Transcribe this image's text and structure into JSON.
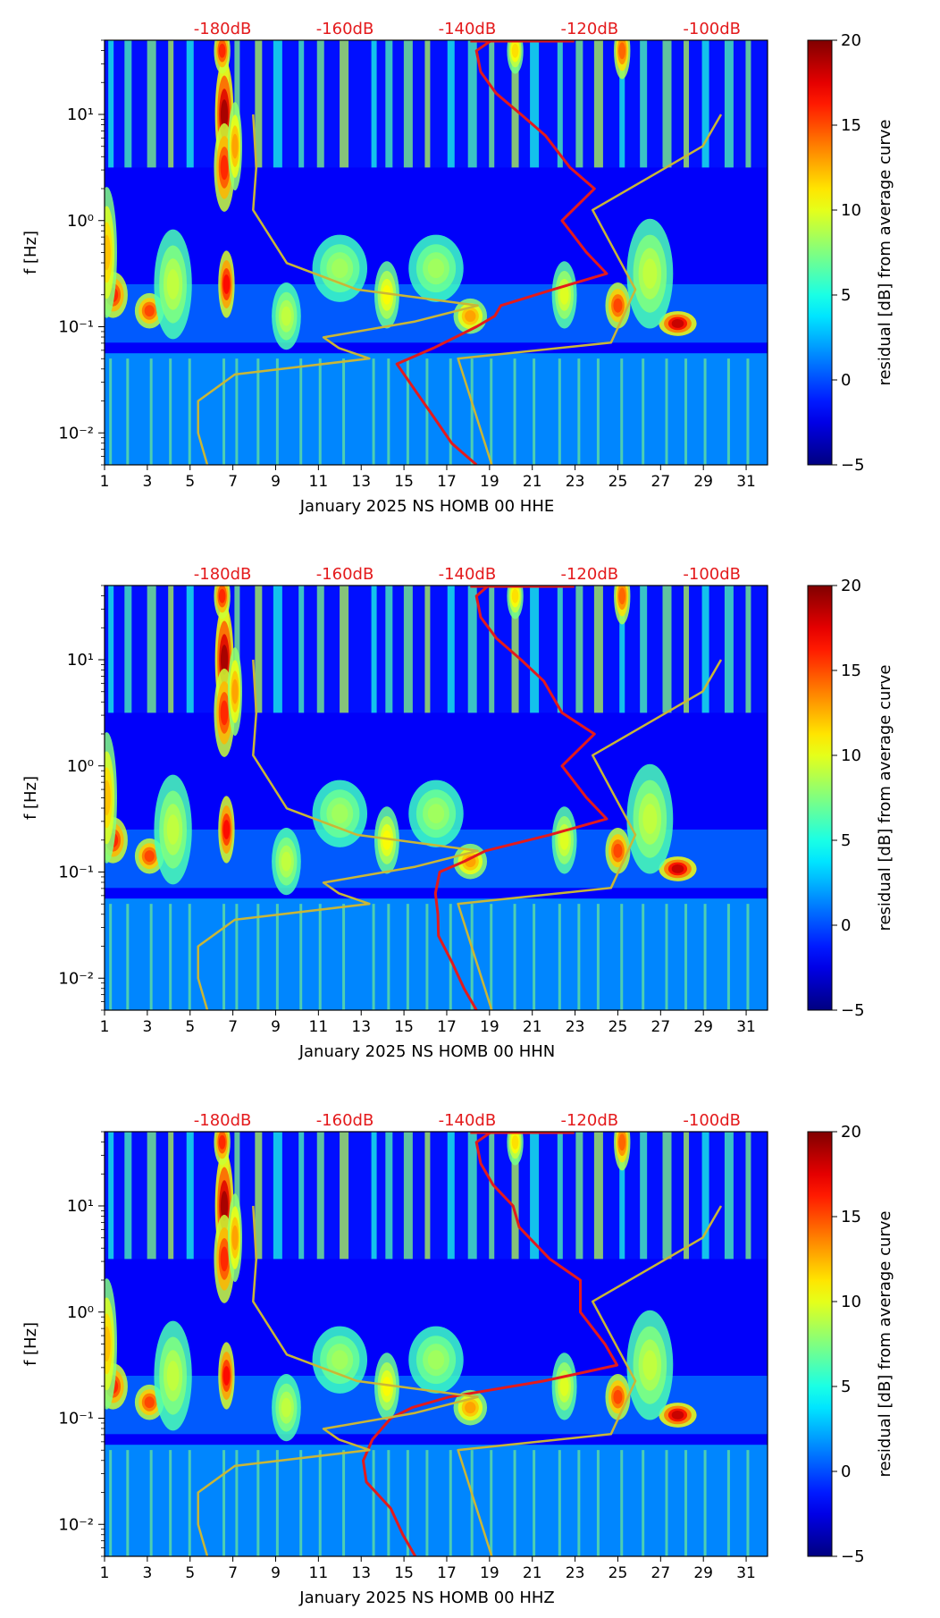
{
  "chart_data": [
    {
      "type": "heatmap",
      "xlabel": "January 2025 NS HOMB 00 HHE",
      "ylabel": "f [Hz]",
      "x_ticks": [
        "1",
        "3",
        "5",
        "7",
        "9",
        "11",
        "13",
        "15",
        "17",
        "19",
        "21",
        "23",
        "25",
        "27",
        "29",
        "31"
      ],
      "x_range": [
        1,
        32
      ],
      "y_ticks": [
        "10⁻²",
        "10⁻¹",
        "10⁰",
        "10¹"
      ],
      "y_range_hz": [
        0.005,
        50
      ],
      "y_scale": "log",
      "top_axis_ticks": [
        "-180dB",
        "-160dB",
        "-140dB",
        "-120dB",
        "-100dB"
      ],
      "colorbar": {
        "label": "residual [dB] from average curve",
        "ticks": [
          "20",
          "15",
          "10",
          "5",
          "0",
          "−5"
        ],
        "range": [
          -5,
          20
        ],
        "colormap": "jet"
      },
      "curves": [
        {
          "name": "average PSD",
          "color": "#e31a1c",
          "log_f_db": [
            [
              1.7,
              -136
            ],
            [
              1.6,
              -138.5
            ],
            [
              1.4,
              -137.8
            ],
            [
              1.2,
              -135.3
            ],
            [
              1.0,
              -131.2
            ],
            [
              0.8,
              -127.2
            ],
            [
              0.5,
              -123.2
            ],
            [
              0.3,
              -119.2
            ],
            [
              0.0,
              -124.5
            ],
            [
              -0.3,
              -120.5
            ],
            [
              -0.5,
              -117.2
            ],
            [
              -0.65,
              -126
            ],
            [
              -0.8,
              -134.5
            ],
            [
              -0.9,
              -135.5
            ],
            [
              -1.0,
              -138.5
            ],
            [
              -1.2,
              -145.5
            ],
            [
              -1.35,
              -151.5
            ],
            [
              -1.6,
              -148.5
            ],
            [
              -1.85,
              -145.5
            ],
            [
              -2.1,
              -142.5
            ],
            [
              -2.3,
              -138.5
            ]
          ]
        },
        {
          "name": "NLNM",
          "color": "#c9b637",
          "log_f_db": [
            [
              -2.3,
              -182.5
            ],
            [
              -2.0,
              -184
            ],
            [
              -1.7,
              -184
            ],
            [
              -1.45,
              -178
            ],
            [
              -1.3,
              -156
            ],
            [
              -1.2,
              -161
            ],
            [
              -1.1,
              -163.5
            ],
            [
              -0.95,
              -148.5
            ],
            [
              -0.8,
              -138.3
            ],
            [
              -0.65,
              -158
            ],
            [
              -0.4,
              -169.5
            ],
            [
              0.1,
              -175
            ],
            [
              0.5,
              -174.5
            ],
            [
              1.0,
              -175
            ]
          ]
        },
        {
          "name": "NHNM",
          "color": "#c9b637",
          "log_f_db": [
            [
              -2.3,
              -136
            ],
            [
              -1.3,
              -141.5
            ],
            [
              -1.15,
              -116.5
            ],
            [
              -0.65,
              -112.5
            ],
            [
              0.1,
              -119.5
            ],
            [
              0.5,
              -107.5
            ],
            [
              0.7,
              -101.5
            ],
            [
              1.0,
              -98.5
            ]
          ]
        }
      ]
    },
    {
      "type": "heatmap",
      "xlabel": "January 2025 NS HOMB 00 HHN",
      "ylabel": "f [Hz]",
      "x_ticks": [
        "1",
        "3",
        "5",
        "7",
        "9",
        "11",
        "13",
        "15",
        "17",
        "19",
        "21",
        "23",
        "25",
        "27",
        "29",
        "31"
      ],
      "x_range": [
        1,
        32
      ],
      "y_ticks": [
        "10⁻²",
        "10⁻¹",
        "10⁰",
        "10¹"
      ],
      "y_range_hz": [
        0.005,
        50
      ],
      "y_scale": "log",
      "top_axis_ticks": [
        "-180dB",
        "-160dB",
        "-140dB",
        "-120dB",
        "-100dB"
      ],
      "colorbar": {
        "label": "residual [dB] from average curve",
        "ticks": [
          "20",
          "15",
          "10",
          "5",
          "0",
          "−5"
        ],
        "range": [
          -5,
          20
        ],
        "colormap": "jet"
      },
      "curves": [
        {
          "name": "average PSD",
          "color": "#e31a1c",
          "log_f_db": [
            [
              1.7,
              -136.5
            ],
            [
              1.6,
              -138.5
            ],
            [
              1.4,
              -137.8
            ],
            [
              1.2,
              -135.2
            ],
            [
              1.0,
              -131.2
            ],
            [
              0.8,
              -127.5
            ],
            [
              0.5,
              -124.5
            ],
            [
              0.3,
              -119.2
            ],
            [
              0.0,
              -124.5
            ],
            [
              -0.3,
              -120.5
            ],
            [
              -0.5,
              -117.2
            ],
            [
              -0.65,
              -126.5
            ],
            [
              -0.8,
              -137
            ],
            [
              -0.9,
              -140.5
            ],
            [
              -1.0,
              -144.5
            ],
            [
              -1.2,
              -145.2
            ],
            [
              -1.4,
              -144.8
            ],
            [
              -1.6,
              -144.7
            ],
            [
              -1.85,
              -142.5
            ],
            [
              -2.1,
              -140.5
            ],
            [
              -2.3,
              -138.5
            ]
          ]
        },
        {
          "name": "NLNM",
          "color": "#c9b637",
          "log_f_db": [
            [
              -2.3,
              -182.5
            ],
            [
              -2.0,
              -184
            ],
            [
              -1.7,
              -184
            ],
            [
              -1.45,
              -178
            ],
            [
              -1.3,
              -156
            ],
            [
              -1.2,
              -161
            ],
            [
              -1.1,
              -163.5
            ],
            [
              -0.95,
              -148.5
            ],
            [
              -0.8,
              -138.3
            ],
            [
              -0.65,
              -158
            ],
            [
              -0.4,
              -169.5
            ],
            [
              0.1,
              -175
            ],
            [
              0.5,
              -174.5
            ],
            [
              1.0,
              -175
            ]
          ]
        },
        {
          "name": "NHNM",
          "color": "#c9b637",
          "log_f_db": [
            [
              -2.3,
              -136
            ],
            [
              -1.3,
              -141.5
            ],
            [
              -1.15,
              -116.5
            ],
            [
              -0.65,
              -112.5
            ],
            [
              0.1,
              -119.5
            ],
            [
              0.5,
              -107.5
            ],
            [
              0.7,
              -101.5
            ],
            [
              1.0,
              -98.5
            ]
          ]
        }
      ]
    },
    {
      "type": "heatmap",
      "xlabel": "January 2025 NS HOMB 00 HHZ",
      "ylabel": "f [Hz]",
      "x_ticks": [
        "1",
        "3",
        "5",
        "7",
        "9",
        "11",
        "13",
        "15",
        "17",
        "19",
        "21",
        "23",
        "25",
        "27",
        "29",
        "31"
      ],
      "x_range": [
        1,
        32
      ],
      "y_ticks": [
        "10⁻²",
        "10⁻¹",
        "10⁰",
        "10¹"
      ],
      "y_range_hz": [
        0.005,
        50
      ],
      "y_scale": "log",
      "top_axis_ticks": [
        "-180dB",
        "-160dB",
        "-140dB",
        "-120dB",
        "-100dB"
      ],
      "colorbar": {
        "label": "residual [dB] from average curve",
        "ticks": [
          "20",
          "15",
          "10",
          "5",
          "0",
          "−5"
        ],
        "range": [
          -5,
          20
        ],
        "colormap": "jet"
      },
      "curves": [
        {
          "name": "average PSD",
          "color": "#e31a1c",
          "log_f_db": [
            [
              1.7,
              -136
            ],
            [
              1.6,
              -138.5
            ],
            [
              1.4,
              -137.8
            ],
            [
              1.2,
              -135.8
            ],
            [
              1.0,
              -132.5
            ],
            [
              0.8,
              -131.5
            ],
            [
              0.5,
              -126.5
            ],
            [
              0.3,
              -121.5
            ],
            [
              0.0,
              -121.5
            ],
            [
              -0.3,
              -117.5
            ],
            [
              -0.5,
              -115.5
            ],
            [
              -0.65,
              -127.5
            ],
            [
              -0.8,
              -143
            ],
            [
              -0.9,
              -149
            ],
            [
              -1.0,
              -152.5
            ],
            [
              -1.2,
              -155.5
            ],
            [
              -1.4,
              -157
            ],
            [
              -1.6,
              -156.5
            ],
            [
              -1.85,
              -152.5
            ],
            [
              -2.1,
              -150.5
            ],
            [
              -2.3,
              -148.5
            ]
          ]
        },
        {
          "name": "NLNM",
          "color": "#c9b637",
          "log_f_db": [
            [
              -2.3,
              -182.5
            ],
            [
              -2.0,
              -184
            ],
            [
              -1.7,
              -184
            ],
            [
              -1.45,
              -178
            ],
            [
              -1.3,
              -156
            ],
            [
              -1.2,
              -161
            ],
            [
              -1.1,
              -163.5
            ],
            [
              -0.95,
              -148.5
            ],
            [
              -0.8,
              -138.3
            ],
            [
              -0.65,
              -158
            ],
            [
              -0.4,
              -169.5
            ],
            [
              0.1,
              -175
            ],
            [
              0.5,
              -174.5
            ],
            [
              1.0,
              -175
            ]
          ]
        },
        {
          "name": "NHNM",
          "color": "#c9b637",
          "log_f_db": [
            [
              -2.3,
              -136
            ],
            [
              -1.3,
              -141.5
            ],
            [
              -1.15,
              -116.5
            ],
            [
              -0.65,
              -112.5
            ],
            [
              0.1,
              -119.5
            ],
            [
              0.5,
              -107.5
            ],
            [
              0.7,
              -101.5
            ],
            [
              1.0,
              -98.5
            ]
          ]
        }
      ]
    }
  ]
}
